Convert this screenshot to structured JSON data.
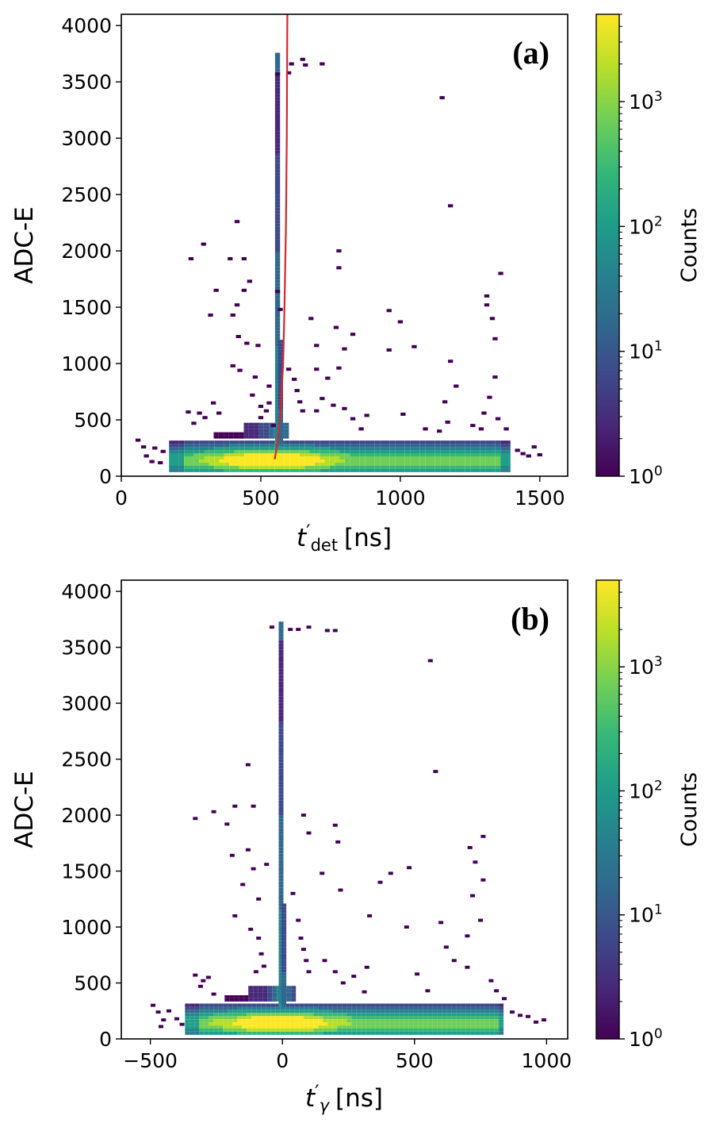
{
  "colormap": [
    "#440154",
    "#482878",
    "#3e4989",
    "#31688e",
    "#26828e",
    "#1f9e89",
    "#35b779",
    "#6ece58",
    "#b5de2b",
    "#fde725"
  ],
  "fit_curve_color": "#d62728",
  "chart_data": [
    {
      "type": "heatmap",
      "panel_label": "(a)",
      "xlabel": "t′det [ns]",
      "xlabel_main": "t",
      "xlabel_prime": "′",
      "xlabel_sub": "det",
      "xlabel_unit": "[ns]",
      "ylabel": "ADC-E",
      "xlim": [
        0,
        1600
      ],
      "ylim": [
        0,
        4100
      ],
      "xticks": [
        0,
        500,
        1000,
        1500
      ],
      "xtick_labels": [
        "0",
        "500",
        "1000",
        "1500"
      ],
      "yticks": [
        0,
        500,
        1000,
        1500,
        2000,
        2500,
        3000,
        3500,
        4000
      ],
      "ytick_labels": [
        "0",
        "500",
        "1000",
        "1500",
        "2000",
        "2500",
        "3000",
        "3500",
        "4000"
      ],
      "colorbar": {
        "label": "Counts",
        "scale": "log",
        "range": [
          1,
          5000
        ],
        "ticks": [
          1,
          10,
          100,
          1000
        ],
        "tick_labels": [
          [
            "10",
            "0"
          ],
          [
            "10",
            "1"
          ],
          [
            "10",
            "2"
          ],
          [
            "10",
            "3"
          ]
        ]
      },
      "main_band": {
        "x_start": 180,
        "x_end": 1390,
        "y_bottom": 50,
        "y_top": 320,
        "peak_x": 540,
        "peak_y": 140
      },
      "ridge": {
        "x": 560,
        "y_from": 300,
        "y_to": 3750
      },
      "fit_curve": {
        "x": [
          550,
          560,
          570,
          580,
          585,
          590,
          593,
          595
        ],
        "y": [
          150,
          300,
          550,
          1000,
          1500,
          2200,
          3000,
          4100
        ]
      },
      "scatter_cells": [
        [
          60,
          320
        ],
        [
          80,
          260
        ],
        [
          120,
          250
        ],
        [
          90,
          180
        ],
        [
          150,
          220
        ],
        [
          140,
          120
        ],
        [
          110,
          130
        ],
        [
          240,
          570
        ],
        [
          260,
          470
        ],
        [
          280,
          560
        ],
        [
          300,
          520
        ],
        [
          330,
          650
        ],
        [
          350,
          560
        ],
        [
          250,
          1930
        ],
        [
          295,
          2060
        ],
        [
          340,
          1650
        ],
        [
          390,
          1930
        ],
        [
          415,
          2260
        ],
        [
          440,
          1650
        ],
        [
          320,
          1430
        ],
        [
          400,
          1430
        ],
        [
          415,
          1520
        ],
        [
          440,
          1930
        ],
        [
          460,
          1730
        ],
        [
          420,
          1240
        ],
        [
          450,
          1180
        ],
        [
          490,
          1160
        ],
        [
          400,
          980
        ],
        [
          425,
          940
        ],
        [
          480,
          880
        ],
        [
          470,
          720
        ],
        [
          500,
          620
        ],
        [
          520,
          580
        ],
        [
          530,
          650
        ],
        [
          500,
          520
        ],
        [
          545,
          450
        ],
        [
          530,
          800
        ],
        [
          560,
          1640
        ],
        [
          570,
          1480
        ],
        [
          610,
          3660
        ],
        [
          600,
          3580
        ],
        [
          560,
          3570
        ],
        [
          650,
          3700
        ],
        [
          720,
          3660
        ],
        [
          660,
          3650
        ],
        [
          600,
          950
        ],
        [
          620,
          860
        ],
        [
          630,
          760
        ],
        [
          640,
          660
        ],
        [
          650,
          580
        ],
        [
          680,
          1400
        ],
        [
          700,
          1160
        ],
        [
          700,
          950
        ],
        [
          700,
          580
        ],
        [
          720,
          690
        ],
        [
          740,
          870
        ],
        [
          760,
          630
        ],
        [
          780,
          960
        ],
        [
          800,
          1130
        ],
        [
          780,
          2000
        ],
        [
          780,
          1850
        ],
        [
          770,
          1320
        ],
        [
          800,
          600
        ],
        [
          830,
          510
        ],
        [
          860,
          420
        ],
        [
          880,
          540
        ],
        [
          830,
          1260
        ],
        [
          960,
          1470
        ],
        [
          1000,
          1370
        ],
        [
          960,
          1120
        ],
        [
          1050,
          1150
        ],
        [
          1010,
          550
        ],
        [
          1090,
          420
        ],
        [
          1140,
          400
        ],
        [
          1170,
          480
        ],
        [
          1150,
          3360
        ],
        [
          1180,
          2400
        ],
        [
          1180,
          1020
        ],
        [
          1160,
          660
        ],
        [
          1200,
          800
        ],
        [
          1260,
          450
        ],
        [
          1290,
          420
        ],
        [
          1300,
          560
        ],
        [
          1320,
          700
        ],
        [
          1340,
          880
        ],
        [
          1310,
          1600
        ],
        [
          1310,
          1520
        ],
        [
          1330,
          1400
        ],
        [
          1360,
          1800
        ],
        [
          1340,
          1220
        ],
        [
          1350,
          510
        ],
        [
          1380,
          420
        ],
        [
          1420,
          230
        ],
        [
          1440,
          200
        ],
        [
          1460,
          180
        ],
        [
          1480,
          260
        ],
        [
          1500,
          190
        ]
      ]
    },
    {
      "type": "heatmap",
      "panel_label": "(b)",
      "xlabel": "t′γ [ns]",
      "xlabel_main": "t",
      "xlabel_prime": "′",
      "xlabel_sub": "γ",
      "xlabel_unit": "[ns]",
      "ylabel": "ADC-E",
      "xlim": [
        -610,
        1080
      ],
      "ylim": [
        0,
        4100
      ],
      "xticks": [
        -500,
        0,
        500,
        1000
      ],
      "xtick_labels": [
        "−500",
        "0",
        "500",
        "1000"
      ],
      "yticks": [
        0,
        500,
        1000,
        1500,
        2000,
        2500,
        3000,
        3500,
        4000
      ],
      "ytick_labels": [
        "0",
        "500",
        "1000",
        "1500",
        "2000",
        "2500",
        "3000",
        "3500",
        "4000"
      ],
      "colorbar": {
        "label": "Counts",
        "scale": "log",
        "range": [
          1,
          5000
        ],
        "ticks": [
          1,
          10,
          100,
          1000
        ],
        "tick_labels": [
          [
            "10",
            "0"
          ],
          [
            "10",
            "1"
          ],
          [
            "10",
            "2"
          ],
          [
            "10",
            "3"
          ]
        ]
      },
      "main_band": {
        "x_start": -360,
        "x_end": 840,
        "y_bottom": 50,
        "y_top": 320,
        "peak_x": -10,
        "peak_y": 140
      },
      "ridge": {
        "x": -5,
        "y_from": 300,
        "y_to": 3720
      },
      "fit_curve": null,
      "scatter_cells": [
        [
          -490,
          300
        ],
        [
          -470,
          240
        ],
        [
          -460,
          110
        ],
        [
          -450,
          170
        ],
        [
          -430,
          250
        ],
        [
          -400,
          180
        ],
        [
          -380,
          130
        ],
        [
          -330,
          570
        ],
        [
          -300,
          520
        ],
        [
          -310,
          470
        ],
        [
          -280,
          550
        ],
        [
          -260,
          400
        ],
        [
          -330,
          1970
        ],
        [
          -260,
          2030
        ],
        [
          -180,
          2080
        ],
        [
          -210,
          1920
        ],
        [
          -130,
          2450
        ],
        [
          -110,
          2080
        ],
        [
          -190,
          1640
        ],
        [
          -150,
          1380
        ],
        [
          -130,
          1690
        ],
        [
          -110,
          1520
        ],
        [
          -60,
          1560
        ],
        [
          -90,
          1250
        ],
        [
          -180,
          1100
        ],
        [
          -120,
          980
        ],
        [
          -90,
          900
        ],
        [
          -80,
          760
        ],
        [
          -70,
          650
        ],
        [
          -100,
          600
        ],
        [
          -40,
          3680
        ],
        [
          30,
          3660
        ],
        [
          60,
          3660
        ],
        [
          100,
          3680
        ],
        [
          170,
          3650
        ],
        [
          200,
          3650
        ],
        [
          40,
          1300
        ],
        [
          60,
          1060
        ],
        [
          70,
          900
        ],
        [
          80,
          800
        ],
        [
          90,
          700
        ],
        [
          100,
          600
        ],
        [
          80,
          2000
        ],
        [
          100,
          1840
        ],
        [
          150,
          1480
        ],
        [
          200,
          1910
        ],
        [
          210,
          1760
        ],
        [
          220,
          1330
        ],
        [
          160,
          700
        ],
        [
          200,
          600
        ],
        [
          230,
          500
        ],
        [
          270,
          560
        ],
        [
          310,
          420
        ],
        [
          320,
          640
        ],
        [
          330,
          1100
        ],
        [
          370,
          1400
        ],
        [
          410,
          1480
        ],
        [
          480,
          1530
        ],
        [
          470,
          1000
        ],
        [
          510,
          580
        ],
        [
          550,
          430
        ],
        [
          560,
          3380
        ],
        [
          580,
          2390
        ],
        [
          600,
          1040
        ],
        [
          620,
          820
        ],
        [
          650,
          700
        ],
        [
          700,
          920
        ],
        [
          700,
          640
        ],
        [
          720,
          1280
        ],
        [
          730,
          1580
        ],
        [
          710,
          1710
        ],
        [
          760,
          1810
        ],
        [
          760,
          1420
        ],
        [
          750,
          1060
        ],
        [
          790,
          520
        ],
        [
          810,
          430
        ],
        [
          840,
          360
        ],
        [
          870,
          240
        ],
        [
          900,
          210
        ],
        [
          930,
          200
        ],
        [
          960,
          150
        ],
        [
          990,
          170
        ]
      ]
    }
  ]
}
